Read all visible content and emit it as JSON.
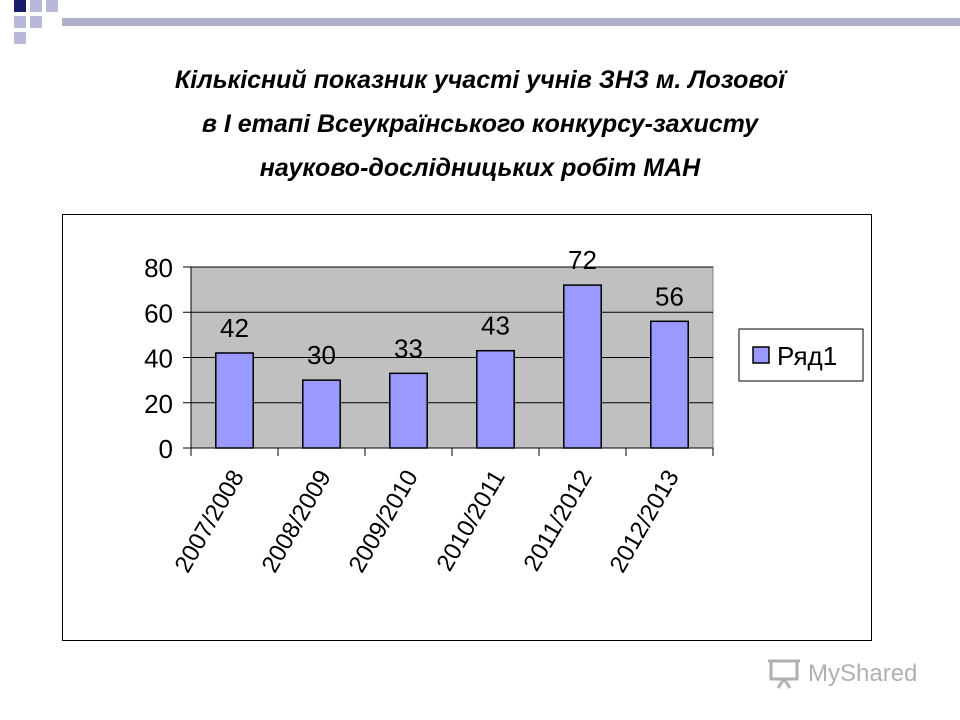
{
  "slide": {
    "title_lines": [
      "Кількісний показник участі учнів ЗНЗ м. Лозової",
      "в I етапі Всеукраїнського конкурсу-захисту",
      "науково-дослідницьких робіт МАН"
    ]
  },
  "watermark": {
    "text": "MyShared",
    "icon": "presentation-board-icon"
  },
  "colors": {
    "plot_background": "#c0c0c0",
    "bar_fill": "#9999ff",
    "bar_stroke": "#000000",
    "deco_navy": "#1b1b6b",
    "deco_light": "#b8b8d8"
  },
  "chart_data": {
    "type": "bar",
    "categories": [
      "2007/2008",
      "2008/2009",
      "2009/2010",
      "2010/2011",
      "2011/2012",
      "2012/2013"
    ],
    "series": [
      {
        "name": "Ряд1",
        "values": [
          42,
          30,
          33,
          43,
          72,
          56
        ]
      }
    ],
    "data_labels": [
      "42",
      "30",
      "33",
      "43",
      "72",
      "56"
    ],
    "yticks": [
      0,
      20,
      40,
      60,
      80
    ],
    "ylim": [
      0,
      80
    ],
    "grid": true,
    "legend": "right",
    "xlabel": "",
    "ylabel": ""
  }
}
